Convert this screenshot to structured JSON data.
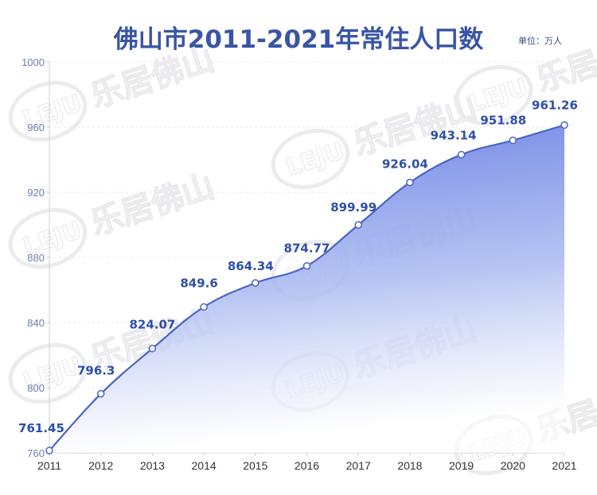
{
  "header": {
    "title": "佛山市2011-2021年常住人口数",
    "unit": "单位：万人"
  },
  "watermark": {
    "text": "乐居佛山",
    "logo": "LEJU"
  },
  "colors": {
    "title": "#3a55a6",
    "line": "#4a64c8",
    "label": "#2f4fa8",
    "fill_top": "#6f86e6",
    "fill_bottom": "#ffffff"
  },
  "chart_data": {
    "type": "area",
    "title": "佛山市2011-2021年常住人口数",
    "subtitle": "单位：万人",
    "xlabel": "",
    "ylabel": "",
    "categories": [
      "2011",
      "2012",
      "2013",
      "2014",
      "2015",
      "2016",
      "2017",
      "2018",
      "2019",
      "2020",
      "2021"
    ],
    "values": [
      761.45,
      796.3,
      824.07,
      849.6,
      864.34,
      874.77,
      899.99,
      926.04,
      943.14,
      951.88,
      961.26
    ],
    "value_labels": [
      "761.45",
      "796.3",
      "824.07",
      "849.6",
      "864.34",
      "874.77",
      "899.99",
      "926.04",
      "943.14",
      "951.88",
      "961.26"
    ],
    "ylim": [
      760,
      1000
    ],
    "yticks": [
      "760",
      "800",
      "840",
      "880",
      "920",
      "960",
      "1000"
    ],
    "grid": "horizontal dashed",
    "legend": "none",
    "smooth": true
  }
}
